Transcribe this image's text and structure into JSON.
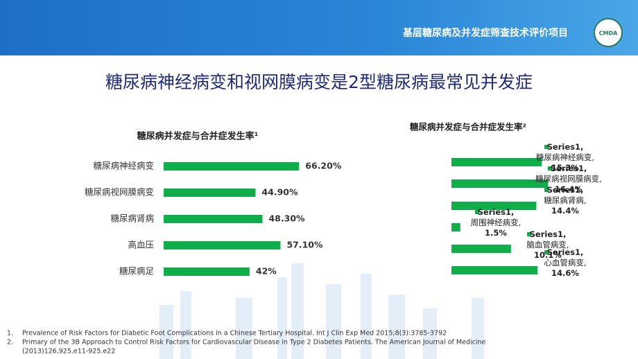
{
  "header": {
    "title": "基层糖尿病及并发症筛查技术评价项目",
    "logo": "CMDA"
  },
  "title": "糖尿病神经病变和视网膜病变是2型糖尿病最常见并发症",
  "chart_data": [
    {
      "type": "bar",
      "orientation": "horizontal",
      "title": "糖尿病并发症与合并症发生率¹",
      "categories": [
        "糖尿病神经病变",
        "糖尿病视网膜病变",
        "糖尿病肾病",
        "高血压",
        "糖尿病足"
      ],
      "values": [
        66.2,
        44.9,
        48.3,
        57.1,
        42
      ],
      "value_labels": [
        "66.20%",
        "44.90%",
        "48.30%",
        "57.10%",
        "42%"
      ],
      "color": "#0fae4b"
    },
    {
      "type": "bar",
      "orientation": "horizontal",
      "title": "糖尿病并发症与合并症发生率²",
      "categories": [
        "糖尿病神经病变",
        "糖尿病视网膜病变",
        "糖尿病肾病",
        "周围神经病变",
        "脑血管病变",
        "心血管病变"
      ],
      "series": [
        {
          "name": "Series1",
          "color": "#0fae4b",
          "values": [
            15.3,
            16.4,
            14.4,
            1.5,
            10.1,
            14.6
          ],
          "value_labels": [
            "15.3%",
            "16.4%",
            "14.4%",
            "1.5%",
            "10.1%",
            "14.6%"
          ]
        }
      ],
      "label_separator": ","
    }
  ],
  "footnotes": [
    {
      "number": "1.",
      "lines": [
        "Prevalence of Risk Factors for Diabetic Foot Complications in a Chinese  Tertiary Hospital.  Int J Clin Exp Med 2015;8(3):3785-3792"
      ]
    },
    {
      "number": "2.",
      "lines": [
        "Primary of the 3B Approach to Control Risk Factors for Cardiovascular Disease in Type 2 Diabetes Patients.  The American Journal of Medicine",
        "(2013)126,925.e11-925.e22"
      ]
    }
  ]
}
